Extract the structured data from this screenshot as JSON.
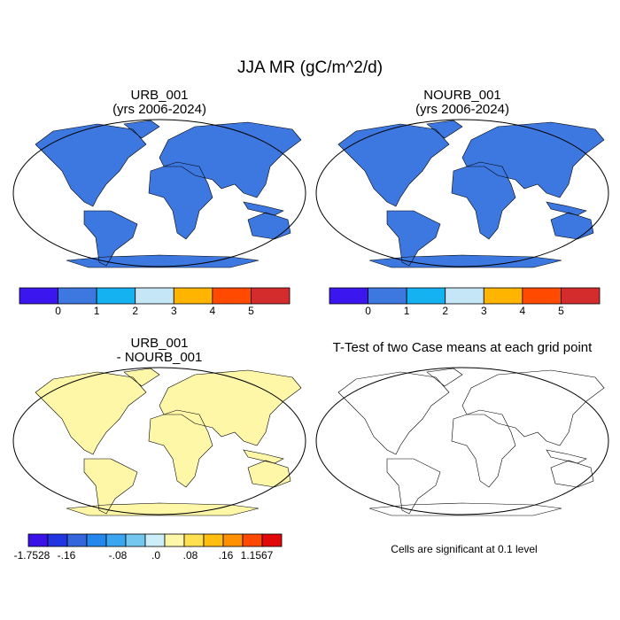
{
  "title": "JJA MR (gC/m^2/d)",
  "panels": [
    {
      "title": "URB_001",
      "subtitle": "(yrs 2006-2024)"
    },
    {
      "title": "NOURB_001",
      "subtitle": "(yrs 2006-2024)"
    },
    {
      "title": "URB_001",
      "subtitle": "- NOURB_001"
    },
    {
      "title": "T-Test of two Case means at each grid point"
    }
  ],
  "colorbars": [
    {
      "colors": [
        "#3b16ee",
        "#3d78e0",
        "#14b2f0",
        "#c4e6f6",
        "#ffb400",
        "#ff4a00",
        "#d42c2c"
      ],
      "labels": [
        "0",
        "1",
        "2",
        "3",
        "4",
        "5"
      ]
    },
    {
      "colors": [
        "#3b16ee",
        "#3d78e0",
        "#14b2f0",
        "#c4e6f6",
        "#ffb400",
        "#ff4a00",
        "#d42c2c"
      ],
      "labels": [
        "0",
        "1",
        "2",
        "3",
        "4",
        "5"
      ]
    },
    {
      "colors": [
        "#3a12e8",
        "#2136e0",
        "#3366dd",
        "#2288ee",
        "#3aa6f0",
        "#74c8f0",
        "#cceef8",
        "#fff7a8",
        "#ffe050",
        "#ffbe10",
        "#ff9000",
        "#ff4800",
        "#e00808"
      ],
      "labels": [
        "-1.7528",
        "-.16",
        "-.08",
        ".0",
        ".08",
        ".16",
        "1.1567"
      ]
    }
  ],
  "note": "Cells are significant at 0.1 level"
}
